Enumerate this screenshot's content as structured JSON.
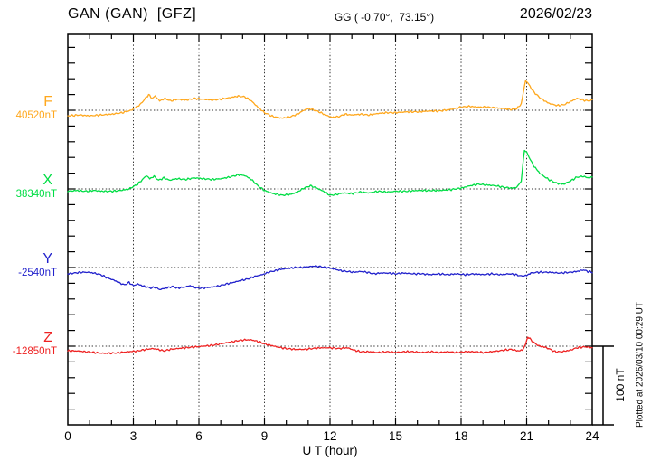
{
  "header": {
    "title": "GAN (GAN)  [GFZ]",
    "coords": "GG ( -0.70°,  73.15°)",
    "date": "2026/02/23"
  },
  "xaxis": {
    "label": "U T (hour)",
    "ticks": [
      "0",
      "3",
      "6",
      "9",
      "12",
      "15",
      "18",
      "21",
      "24"
    ],
    "range": [
      0,
      24
    ]
  },
  "scale_bar": {
    "label": "100 nT",
    "nT": 100
  },
  "footer_note": "Plotted at 2026/03/10 00:29 UT",
  "channels": [
    {
      "letter": "F",
      "value_label": "40520nT",
      "color": "#FFA81E"
    },
    {
      "letter": "X",
      "value_label": "38340nT",
      "color": "#00DD44"
    },
    {
      "letter": "Y",
      "value_label": "-2540nT",
      "color": "#2222CC"
    },
    {
      "letter": "Z",
      "value_label": "-12850nT",
      "color": "#EE2222"
    }
  ],
  "chart_data": {
    "type": "line",
    "title": "GAN (GAN) [GFZ] magnetogram 2026/02/23",
    "xlabel": "U T (hour)",
    "x_range": [
      0,
      24
    ],
    "x_ticks": [
      0,
      3,
      6,
      9,
      12,
      15,
      18,
      21,
      24
    ],
    "grid": "dotted vertical lines every 3 h; dotted horizontal baseline per channel",
    "scale_bar_nT": 100,
    "legend_position": "left margin (channel letter + baseline value)",
    "series": [
      {
        "name": "F",
        "baseline_nT": 40520,
        "color": "#FFA81E",
        "points": [
          [
            0,
            -7
          ],
          [
            0.5,
            -6
          ],
          [
            1,
            -7
          ],
          [
            1.5,
            -6
          ],
          [
            2,
            -5
          ],
          [
            2.5,
            -3
          ],
          [
            2.9,
            0
          ],
          [
            3.3,
            7
          ],
          [
            3.7,
            20
          ],
          [
            3.85,
            15
          ],
          [
            4.0,
            18
          ],
          [
            4.2,
            12
          ],
          [
            4.45,
            15
          ],
          [
            4.7,
            12
          ],
          [
            5,
            14
          ],
          [
            5.4,
            13
          ],
          [
            5.8,
            15
          ],
          [
            6.2,
            14
          ],
          [
            6.6,
            13
          ],
          [
            7,
            14
          ],
          [
            7.4,
            16
          ],
          [
            7.8,
            18
          ],
          [
            8.1,
            17
          ],
          [
            8.4,
            12
          ],
          [
            8.7,
            4
          ],
          [
            9,
            -3
          ],
          [
            9.4,
            -8
          ],
          [
            9.8,
            -10
          ],
          [
            10.2,
            -8
          ],
          [
            10.5,
            -5
          ],
          [
            10.8,
            0
          ],
          [
            11,
            2
          ],
          [
            11.2,
            1
          ],
          [
            11.5,
            -2
          ],
          [
            11.8,
            -6
          ],
          [
            12.1,
            -9
          ],
          [
            12.4,
            -8
          ],
          [
            12.7,
            -5
          ],
          [
            13,
            -6
          ],
          [
            13.4,
            -5
          ],
          [
            13.8,
            -6
          ],
          [
            14.2,
            -4
          ],
          [
            14.6,
            -3
          ],
          [
            15,
            -3
          ],
          [
            15.5,
            -2
          ],
          [
            16,
            -2
          ],
          [
            16.5,
            -1
          ],
          [
            17,
            -1
          ],
          [
            17.5,
            1
          ],
          [
            18,
            4
          ],
          [
            18.4,
            5
          ],
          [
            18.8,
            4
          ],
          [
            19.2,
            4
          ],
          [
            19.6,
            3
          ],
          [
            20,
            2
          ],
          [
            20.3,
            1
          ],
          [
            20.55,
            2
          ],
          [
            20.75,
            8
          ],
          [
            20.95,
            38
          ],
          [
            21.1,
            33
          ],
          [
            21.3,
            24
          ],
          [
            21.6,
            16
          ],
          [
            22,
            9
          ],
          [
            22.4,
            6
          ],
          [
            22.7,
            7
          ],
          [
            23,
            11
          ],
          [
            23.3,
            15
          ],
          [
            23.6,
            13
          ],
          [
            23.8,
            12
          ],
          [
            24,
            13
          ]
        ]
      },
      {
        "name": "X",
        "baseline_nT": 38340,
        "color": "#00DD44",
        "points": [
          [
            0,
            -3
          ],
          [
            0.4,
            -2
          ],
          [
            0.8,
            -3
          ],
          [
            1.2,
            -2
          ],
          [
            1.6,
            -3
          ],
          [
            2,
            -3
          ],
          [
            2.4,
            -2
          ],
          [
            2.8,
            0
          ],
          [
            3.2,
            6
          ],
          [
            3.6,
            17
          ],
          [
            3.75,
            13
          ],
          [
            3.95,
            16
          ],
          [
            4.15,
            11
          ],
          [
            4.4,
            14
          ],
          [
            4.65,
            11
          ],
          [
            5,
            13
          ],
          [
            5.4,
            12
          ],
          [
            5.8,
            14
          ],
          [
            6.2,
            13
          ],
          [
            6.6,
            12
          ],
          [
            7,
            13
          ],
          [
            7.4,
            15
          ],
          [
            7.8,
            18
          ],
          [
            8.1,
            17
          ],
          [
            8.4,
            12
          ],
          [
            8.7,
            4
          ],
          [
            9,
            -2
          ],
          [
            9.4,
            -6
          ],
          [
            9.8,
            -8
          ],
          [
            10.2,
            -7
          ],
          [
            10.5,
            -4
          ],
          [
            10.8,
            1
          ],
          [
            11.1,
            4
          ],
          [
            11.4,
            1
          ],
          [
            11.7,
            -3
          ],
          [
            12,
            -8
          ],
          [
            12.3,
            -7
          ],
          [
            12.6,
            -5
          ],
          [
            13,
            -6
          ],
          [
            13.4,
            -4
          ],
          [
            13.8,
            -5
          ],
          [
            14.2,
            -3
          ],
          [
            14.6,
            -4
          ],
          [
            15,
            -3
          ],
          [
            15.5,
            -3
          ],
          [
            16,
            -2
          ],
          [
            16.5,
            -2
          ],
          [
            17,
            -2
          ],
          [
            17.5,
            -1
          ],
          [
            18,
            1
          ],
          [
            18.4,
            4
          ],
          [
            18.8,
            6
          ],
          [
            19.2,
            5
          ],
          [
            19.6,
            4
          ],
          [
            20,
            2
          ],
          [
            20.3,
            1
          ],
          [
            20.55,
            2
          ],
          [
            20.75,
            10
          ],
          [
            20.9,
            50
          ],
          [
            21.05,
            44
          ],
          [
            21.3,
            30
          ],
          [
            21.6,
            20
          ],
          [
            22,
            12
          ],
          [
            22.4,
            7
          ],
          [
            22.7,
            6
          ],
          [
            23,
            10
          ],
          [
            23.3,
            15
          ],
          [
            23.6,
            16
          ],
          [
            23.8,
            14
          ],
          [
            24,
            15
          ]
        ]
      },
      {
        "name": "Y",
        "baseline_nT": -2540,
        "color": "#2222CC",
        "points": [
          [
            0,
            -8
          ],
          [
            0.3,
            -7
          ],
          [
            0.6,
            -6
          ],
          [
            0.9,
            -6
          ],
          [
            1.2,
            -7
          ],
          [
            1.5,
            -9
          ],
          [
            1.8,
            -13
          ],
          [
            2.1,
            -16
          ],
          [
            2.4,
            -20
          ],
          [
            2.6,
            -22
          ],
          [
            2.8,
            -19
          ],
          [
            3.0,
            -23
          ],
          [
            3.2,
            -21
          ],
          [
            3.5,
            -24
          ],
          [
            3.8,
            -26
          ],
          [
            4.0,
            -25
          ],
          [
            4.2,
            -28
          ],
          [
            4.5,
            -26
          ],
          [
            4.8,
            -24
          ],
          [
            5.0,
            -26
          ],
          [
            5.3,
            -25
          ],
          [
            5.6,
            -23
          ],
          [
            5.9,
            -26
          ],
          [
            6.2,
            -26
          ],
          [
            6.5,
            -25
          ],
          [
            6.8,
            -24
          ],
          [
            7.1,
            -22
          ],
          [
            7.4,
            -20
          ],
          [
            7.7,
            -18
          ],
          [
            8.0,
            -16
          ],
          [
            8.3,
            -14
          ],
          [
            8.6,
            -11
          ],
          [
            8.9,
            -9
          ],
          [
            9.2,
            -6
          ],
          [
            9.5,
            -4
          ],
          [
            9.8,
            -2
          ],
          [
            10.1,
            -1
          ],
          [
            10.4,
            0
          ],
          [
            10.7,
            0
          ],
          [
            11.0,
            1
          ],
          [
            11.3,
            2
          ],
          [
            11.6,
            1
          ],
          [
            11.9,
            0
          ],
          [
            12.2,
            -2
          ],
          [
            12.5,
            -4
          ],
          [
            12.8,
            -5
          ],
          [
            13.1,
            -6
          ],
          [
            13.4,
            -5
          ],
          [
            13.7,
            -6
          ],
          [
            14.0,
            -8
          ],
          [
            14.3,
            -7
          ],
          [
            14.6,
            -7
          ],
          [
            15,
            -8
          ],
          [
            15.4,
            -7
          ],
          [
            15.8,
            -8
          ],
          [
            16.2,
            -8
          ],
          [
            16.6,
            -9
          ],
          [
            17,
            -8
          ],
          [
            17.4,
            -9
          ],
          [
            17.8,
            -8
          ],
          [
            18.2,
            -9
          ],
          [
            18.6,
            -8
          ],
          [
            19,
            -9
          ],
          [
            19.4,
            -8
          ],
          [
            19.8,
            -9
          ],
          [
            20.2,
            -8
          ],
          [
            20.5,
            -9
          ],
          [
            20.8,
            -11
          ],
          [
            21.0,
            -10
          ],
          [
            21.2,
            -7
          ],
          [
            21.5,
            -6
          ],
          [
            22,
            -6
          ],
          [
            22.5,
            -7
          ],
          [
            23,
            -6
          ],
          [
            23.3,
            -5
          ],
          [
            23.6,
            -3
          ],
          [
            23.8,
            -5
          ],
          [
            24,
            -6
          ]
        ]
      },
      {
        "name": "Z",
        "baseline_nT": -12850,
        "color": "#EE2222",
        "points": [
          [
            0,
            -6
          ],
          [
            0.4,
            -6
          ],
          [
            0.8,
            -7
          ],
          [
            1.2,
            -8
          ],
          [
            1.6,
            -9
          ],
          [
            2,
            -9
          ],
          [
            2.4,
            -8
          ],
          [
            2.8,
            -7
          ],
          [
            3.2,
            -6
          ],
          [
            3.6,
            -4
          ],
          [
            3.9,
            -3
          ],
          [
            4.1,
            -4
          ],
          [
            4.4,
            -6
          ],
          [
            4.7,
            -4
          ],
          [
            5,
            -3
          ],
          [
            5.4,
            -2
          ],
          [
            5.8,
            -1
          ],
          [
            6.2,
            0
          ],
          [
            6.6,
            1
          ],
          [
            7,
            3
          ],
          [
            7.4,
            5
          ],
          [
            7.8,
            7
          ],
          [
            8.1,
            8
          ],
          [
            8.4,
            8
          ],
          [
            8.7,
            6
          ],
          [
            9,
            3
          ],
          [
            9.3,
            1
          ],
          [
            9.6,
            -1
          ],
          [
            10,
            -3
          ],
          [
            10.4,
            -4
          ],
          [
            10.8,
            -4
          ],
          [
            11.2,
            -3
          ],
          [
            11.6,
            -2
          ],
          [
            12,
            -2
          ],
          [
            12.4,
            -3
          ],
          [
            12.8,
            -2
          ],
          [
            13.1,
            -5
          ],
          [
            13.4,
            -7
          ],
          [
            13.8,
            -7
          ],
          [
            14.2,
            -8
          ],
          [
            14.6,
            -7
          ],
          [
            15,
            -8
          ],
          [
            15.4,
            -7
          ],
          [
            15.8,
            -7
          ],
          [
            16.2,
            -8
          ],
          [
            16.6,
            -7
          ],
          [
            17,
            -8
          ],
          [
            17.4,
            -7
          ],
          [
            17.8,
            -8
          ],
          [
            18.2,
            -7
          ],
          [
            18.6,
            -7
          ],
          [
            19,
            -8
          ],
          [
            19.4,
            -7
          ],
          [
            19.7,
            -6
          ],
          [
            20,
            -5
          ],
          [
            20.3,
            -4
          ],
          [
            20.6,
            -6
          ],
          [
            20.8,
            -5
          ],
          [
            20.95,
            2
          ],
          [
            21.05,
            12
          ],
          [
            21.2,
            8
          ],
          [
            21.4,
            3
          ],
          [
            21.6,
            0
          ],
          [
            21.8,
            -1
          ],
          [
            22,
            -3
          ],
          [
            22.3,
            -7
          ],
          [
            22.6,
            -7
          ],
          [
            23,
            -5
          ],
          [
            23.3,
            -2
          ],
          [
            23.6,
            -1
          ],
          [
            23.8,
            -1
          ],
          [
            24,
            -2
          ]
        ]
      }
    ]
  }
}
